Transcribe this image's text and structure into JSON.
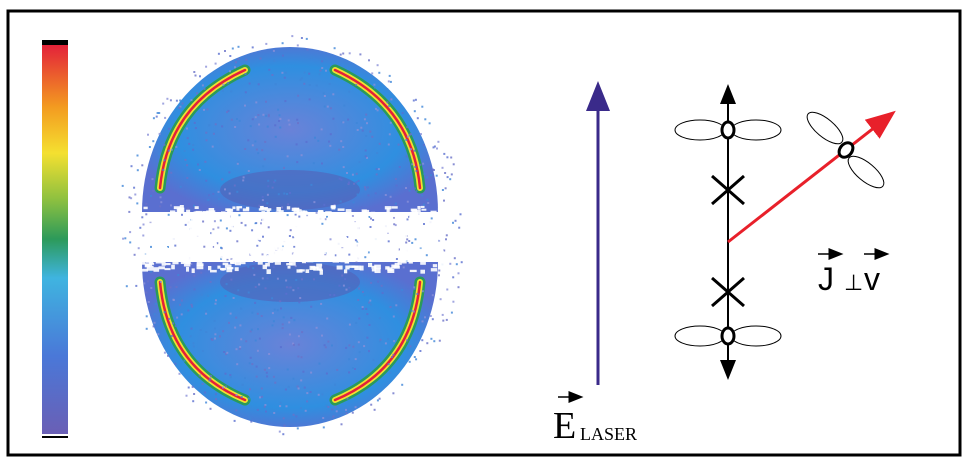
{
  "field_label": {
    "symbol": "E",
    "subscript": "LASER"
  },
  "relation_label": {
    "left": "J",
    "operator": "⊥",
    "right": "v"
  }
}
